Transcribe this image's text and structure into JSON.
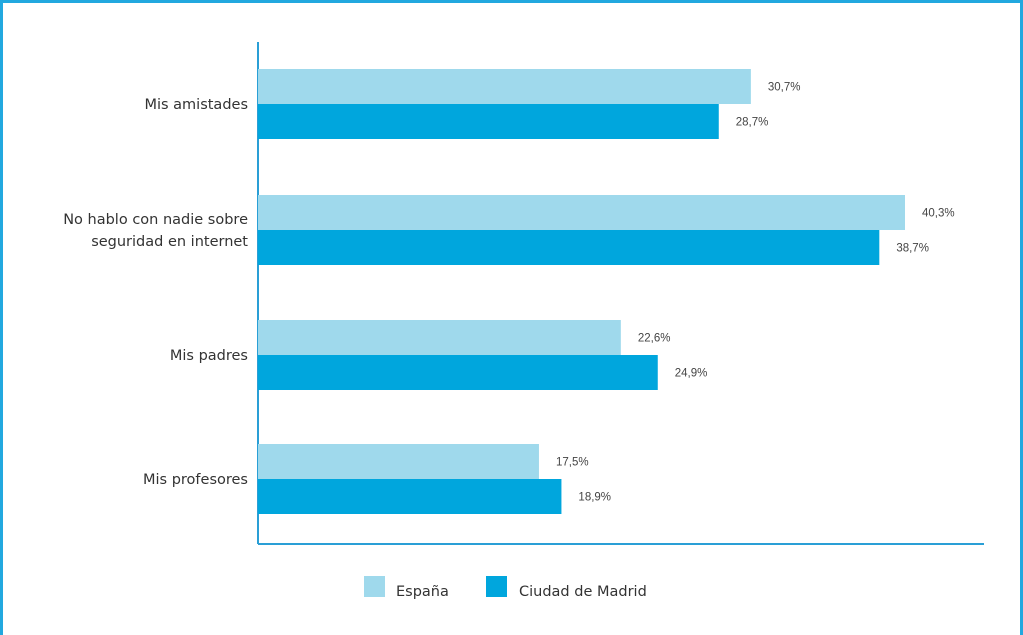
{
  "chart_data": {
    "type": "bar",
    "orientation": "horizontal",
    "categories": [
      [
        "Mis amistades"
      ],
      [
        "No hablo con nadie sobre",
        "seguridad en internet"
      ],
      [
        "Mis padres"
      ],
      [
        "Mis profesores"
      ]
    ],
    "series": [
      {
        "name": "España",
        "color": "#9fd9ec",
        "values": [
          30.7,
          40.3,
          22.6,
          17.5
        ],
        "labels": [
          "30,7%",
          "40,3%",
          "22,6%",
          "17,5%"
        ]
      },
      {
        "name": "Ciudad de Madrid",
        "color": "#00a6dd",
        "values": [
          28.7,
          38.7,
          24.9,
          18.9
        ],
        "labels": [
          "28,7%",
          "38,7%",
          "24,9%",
          "18,9%"
        ]
      }
    ],
    "xlim": [
      0,
      45
    ],
    "grid": false,
    "legend_position": "bottom-center",
    "frame_color": "#22a8df",
    "axis_color": "#2a9fd6"
  }
}
